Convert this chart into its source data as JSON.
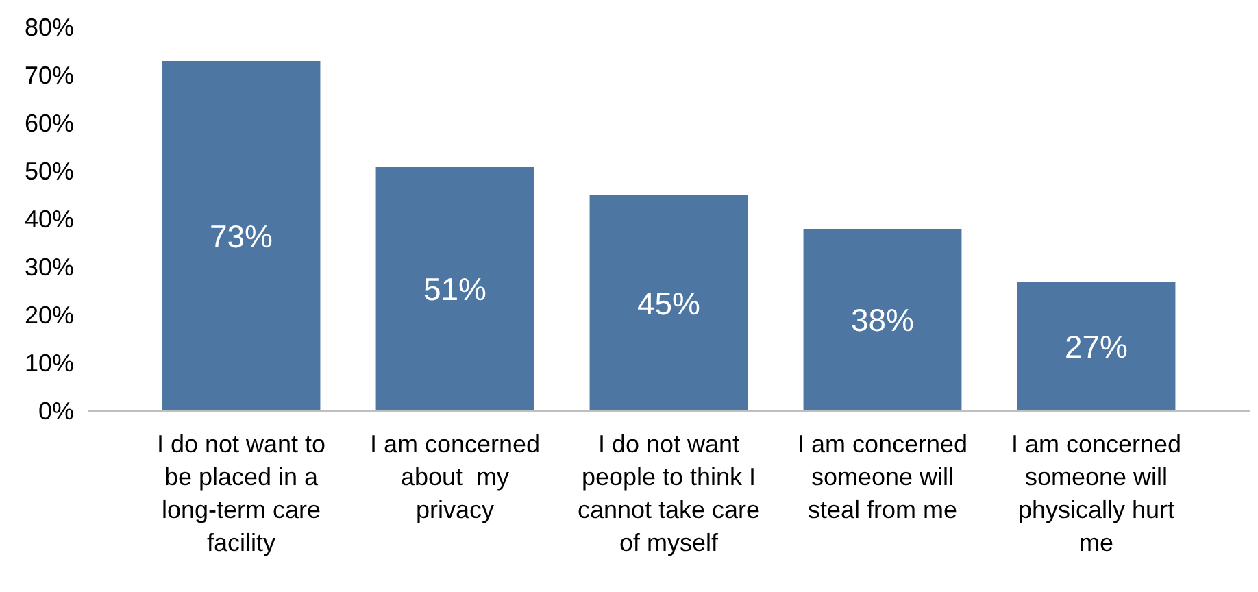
{
  "chart_data": {
    "type": "bar",
    "categories": [
      "I do not want to be placed in a long-term care facility",
      "I am concerned about  my privacy",
      "I do not want people to think I cannot take care of myself",
      "I am concerned someone will steal from me",
      "I am concerned someone will physically hurt me"
    ],
    "values": [
      73,
      51,
      45,
      38,
      27
    ],
    "value_labels": [
      "73%",
      "51%",
      "45%",
      "38%",
      "27%"
    ],
    "color": "#4d76a3",
    "ylim": [
      0,
      80
    ],
    "yticks": [
      {
        "value": 0,
        "label": "0%"
      },
      {
        "value": 10,
        "label": "10%"
      },
      {
        "value": 20,
        "label": "20%"
      },
      {
        "value": 30,
        "label": "30%"
      },
      {
        "value": 40,
        "label": "40%"
      },
      {
        "value": 50,
        "label": "50%"
      },
      {
        "value": 60,
        "label": "60%"
      },
      {
        "value": 70,
        "label": "70%"
      },
      {
        "value": 80,
        "label": "80%"
      }
    ],
    "grid": false
  }
}
